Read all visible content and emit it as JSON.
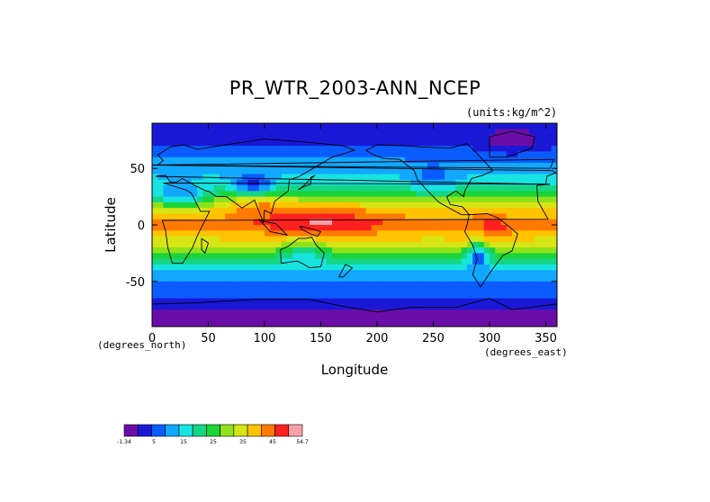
{
  "chart_data": {
    "type": "heatmap",
    "title": "PR_WTR_2003-ANN_NCEP",
    "units": "(units:kg/m^2)",
    "xlabel": "Longitude",
    "ylabel": "Latitude",
    "x_unit_note": "(degrees_east)",
    "y_unit_note": "(degrees_north)",
    "xlim": [
      0,
      360
    ],
    "ylim": [
      -90,
      90
    ],
    "x_ticks": [
      0,
      50,
      100,
      150,
      200,
      250,
      300,
      350
    ],
    "y_ticks": [
      -50,
      0,
      50
    ],
    "colorbar": {
      "levels": [
        "-1.34",
        "5",
        "15",
        "25",
        "35",
        "45",
        "54.7"
      ],
      "colors": [
        "#6a0da8",
        "#1a18d6",
        "#0b5cff",
        "#12a8ff",
        "#17e3e0",
        "#15d685",
        "#1bd43a",
        "#8fe21a",
        "#d7e515",
        "#ffc400",
        "#ff7a00",
        "#ff2020",
        "#f8a0a8"
      ]
    },
    "zonal_profile_estimate": {
      "lat": [
        -90,
        -75,
        -60,
        -45,
        -30,
        -15,
        0,
        15,
        30,
        45,
        60,
        75,
        90
      ],
      "value": [
        0,
        3,
        9,
        14,
        23,
        36,
        44,
        37,
        24,
        15,
        11,
        6,
        4
      ]
    }
  }
}
